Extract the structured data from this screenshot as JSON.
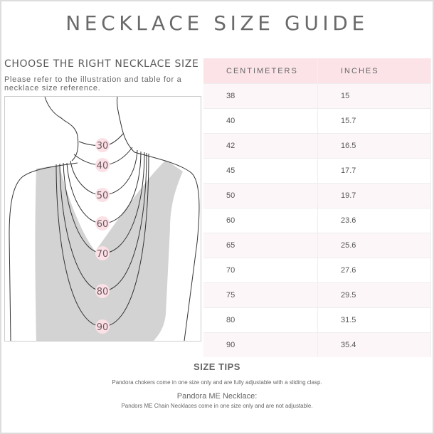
{
  "title": "NECKLACE SIZE GUIDE",
  "left": {
    "heading": "CHOOSE THE RIGHT NECKLACE SIZE",
    "intro": "Please refer to the illustration and table for a necklace size reference.",
    "necklace_labels": [
      "30",
      "40",
      "50",
      "60",
      "70",
      "80",
      "90"
    ]
  },
  "table": {
    "headers": [
      "CENTIMETERS",
      "INCHES"
    ],
    "rows": [
      [
        "38",
        "15"
      ],
      [
        "40",
        "15.7"
      ],
      [
        "42",
        "16.5"
      ],
      [
        "45",
        "17.7"
      ],
      [
        "50",
        "19.7"
      ],
      [
        "60",
        "23.6"
      ],
      [
        "65",
        "25.6"
      ],
      [
        "70",
        "27.6"
      ],
      [
        "75",
        "29.5"
      ],
      [
        "80",
        "31.5"
      ],
      [
        "90",
        "35.4"
      ]
    ]
  },
  "tips": {
    "title": "SIZE TIPS",
    "choker_note": "Pandora chokers come in one size only and are fully adjustable with a sliding clasp.",
    "me_heading": "Pandora ME Necklace:",
    "me_note": "Pandors ME Chain Necklaces come in one size only and are not adjustable."
  },
  "colors": {
    "header_pink": "#fbe3e8",
    "label_circle": "#fbe0e6",
    "shirt_gray": "#d3d3d3",
    "text": "#666666"
  }
}
